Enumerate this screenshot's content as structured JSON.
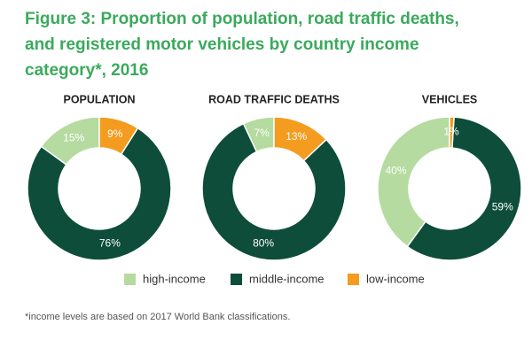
{
  "title_lines": [
    "Figure 3: Proportion of population, road traffic deaths,",
    "and registered motor vehicles by country income",
    "category*, 2016"
  ],
  "footnote": "*income levels are based on 2017 World Bank classifications.",
  "chart_data": [
    {
      "type": "pie",
      "title": "POPULATION",
      "categories": [
        "high-income",
        "middle-income",
        "low-income"
      ],
      "values": [
        15,
        76,
        9
      ],
      "value_labels": [
        "15%",
        "76%",
        "9%"
      ],
      "colors": [
        "#b5dba0",
        "#0d4d3a",
        "#f39c1f"
      ]
    },
    {
      "type": "pie",
      "title": "ROAD TRAFFIC DEATHS",
      "categories": [
        "high-income",
        "middle-income",
        "low-income"
      ],
      "values": [
        7,
        80,
        13
      ],
      "value_labels": [
        "7%",
        "80%",
        "13%"
      ],
      "colors": [
        "#b5dba0",
        "#0d4d3a",
        "#f39c1f"
      ]
    },
    {
      "type": "pie",
      "title": "VEHICLES",
      "categories": [
        "high-income",
        "middle-income",
        "low-income"
      ],
      "values": [
        40,
        59,
        1
      ],
      "value_labels": [
        "40%",
        "59%",
        "1%"
      ],
      "colors": [
        "#b5dba0",
        "#0d4d3a",
        "#f39c1f"
      ]
    }
  ]
}
